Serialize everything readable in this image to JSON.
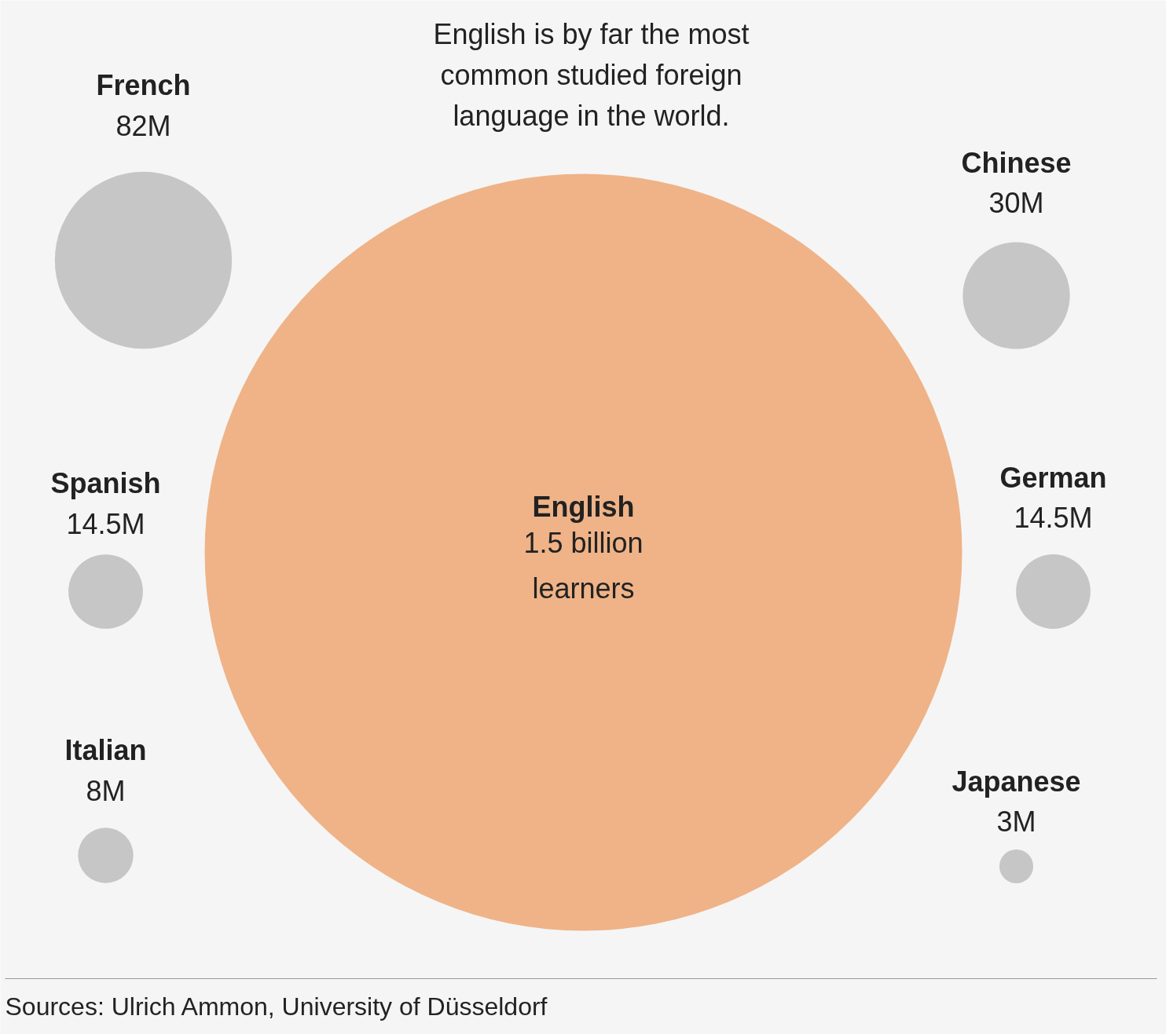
{
  "chart_data": {
    "type": "other",
    "title": "English is by far the most common studied foreign language in the world.",
    "categories": [
      "English",
      "French",
      "Chinese",
      "Spanish",
      "German",
      "Italian",
      "Japanese"
    ],
    "values": [
      1500000000,
      82000000,
      30000000,
      14500000,
      14500000,
      8000000,
      3000000
    ],
    "value_labels": [
      "1.5 billion\nlearners",
      "82M",
      "30M",
      "14.5M",
      "14.5M",
      "8M",
      "3M"
    ],
    "colors": [
      "#efb387",
      "#c6c6c6",
      "#c6c6c6",
      "#c6c6c6",
      "#c6c6c6",
      "#c6c6c6",
      "#c6c6c6"
    ],
    "annotations": [
      "Sources: Ulrich Ammon, University of Düsseldorf"
    ]
  }
}
